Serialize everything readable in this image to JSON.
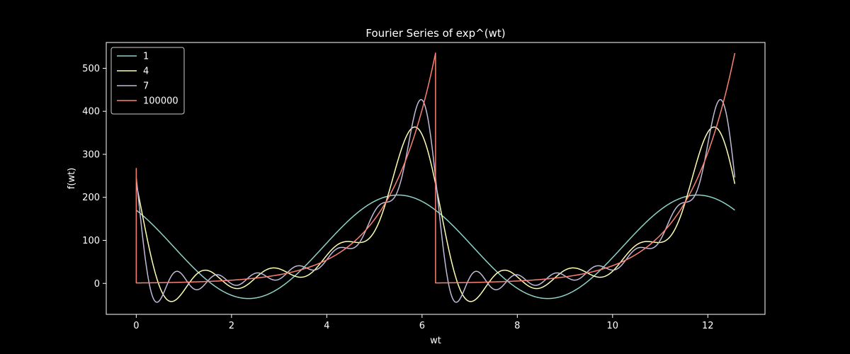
{
  "chart_data": {
    "type": "line",
    "title": "Fourier Series of exp^(wt)",
    "xlabel": "wt",
    "ylabel": "f(wt)",
    "xlim": [
      -0.63,
      13.2
    ],
    "ylim": [
      -72,
      560
    ],
    "xticks": [
      0,
      2,
      4,
      6,
      8,
      10,
      12
    ],
    "yticks": [
      0,
      100,
      200,
      300,
      400,
      500
    ],
    "x_range": [
      0,
      12.566
    ],
    "period": 6.2832,
    "grid": false,
    "legend": "upper left",
    "background": "#000000",
    "foreground": "#ffffff",
    "series": [
      {
        "name": "1",
        "harmonics": 1,
        "color": "#8dd3c7"
      },
      {
        "name": "4",
        "harmonics": 4,
        "color": "#feffb3"
      },
      {
        "name": "7",
        "harmonics": 7,
        "color": "#bfbbd9"
      },
      {
        "name": "100000",
        "harmonics": 100000,
        "color": "#fa8174"
      }
    ]
  }
}
